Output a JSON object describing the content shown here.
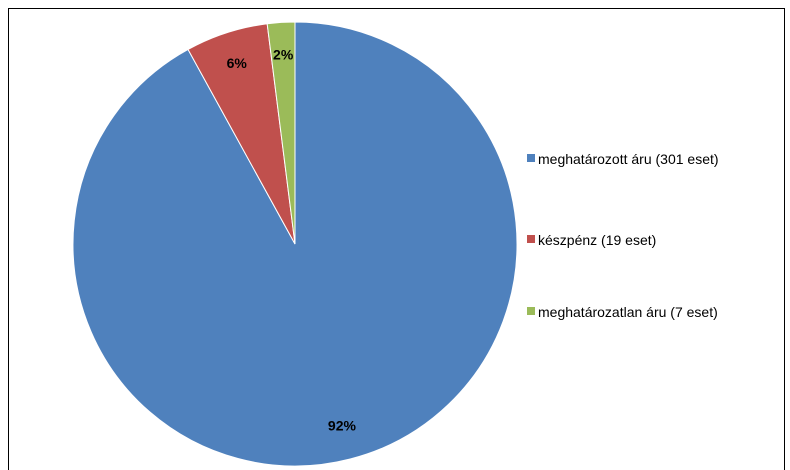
{
  "chart_data": {
    "type": "pie",
    "categories": [
      "meghatározott áru (301 eset)",
      "készpénz (19 eset)",
      "meghatározatlan áru (7 eset)"
    ],
    "values": [
      92,
      6,
      2
    ],
    "value_labels": [
      "92%",
      "6%",
      "2%"
    ],
    "colors": [
      "#4f81bd",
      "#c0504d",
      "#9bbb59"
    ],
    "legend": "right"
  }
}
